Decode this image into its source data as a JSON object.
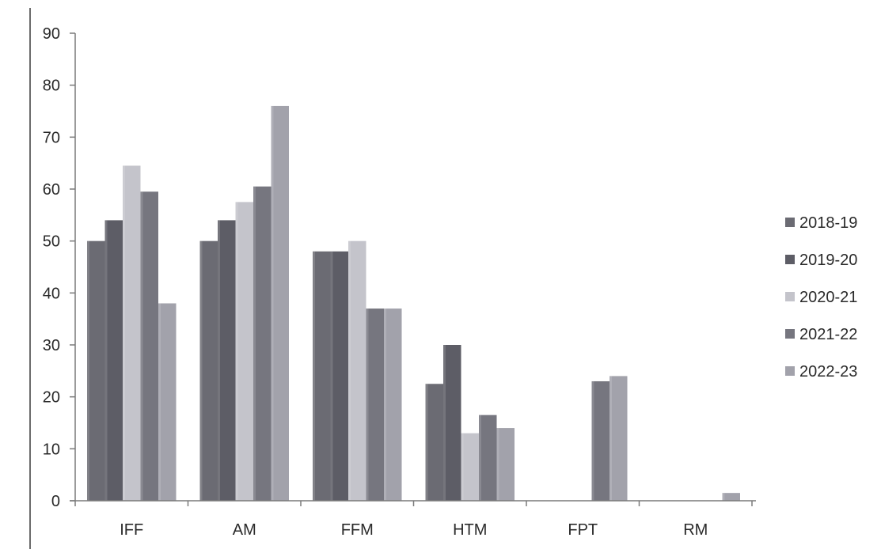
{
  "chart_data": {
    "type": "bar",
    "title": "",
    "xlabel": "",
    "ylabel": "",
    "ylim": [
      0,
      90
    ],
    "yticks": [
      0,
      10,
      20,
      30,
      40,
      50,
      60,
      70,
      80,
      90
    ],
    "grid": false,
    "legend_position": "right",
    "categories": [
      "IFF",
      "AM",
      "FFM",
      "HTM",
      "FPT",
      "RM"
    ],
    "series": [
      {
        "name": "2018-19",
        "color": "#6b6b73",
        "values": [
          50,
          50,
          48,
          22.5,
          0,
          0
        ]
      },
      {
        "name": "2019-20",
        "color": "#5d5d66",
        "values": [
          54,
          54,
          48,
          30,
          0,
          0
        ]
      },
      {
        "name": "2020-21",
        "color": "#c4c4cb",
        "values": [
          64.5,
          57.5,
          50,
          13,
          0,
          0
        ]
      },
      {
        "name": "2021-22",
        "color": "#76767f",
        "values": [
          59.5,
          60.5,
          37,
          16.5,
          23,
          0
        ]
      },
      {
        "name": "2022-23",
        "color": "#a2a2ab",
        "values": [
          38,
          76,
          37,
          14,
          24,
          1.5
        ]
      }
    ]
  }
}
